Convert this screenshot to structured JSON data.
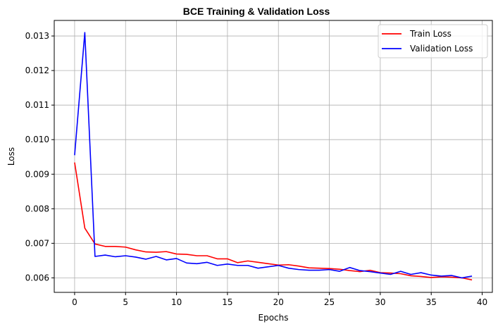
{
  "chart_data": {
    "type": "line",
    "title": "BCE Training & Validation Loss",
    "xlabel": "Epochs",
    "ylabel": "Loss",
    "xlim": [
      -2,
      41
    ],
    "ylim": [
      0.00558,
      0.01345
    ],
    "xticks": [
      0,
      5,
      10,
      15,
      20,
      25,
      30,
      35,
      40
    ],
    "xtick_labels": [
      "0",
      "5",
      "10",
      "15",
      "20",
      "25",
      "30",
      "35",
      "40"
    ],
    "yticks": [
      0.006,
      0.007,
      0.008,
      0.009,
      0.01,
      0.011,
      0.012,
      0.013
    ],
    "ytick_labels": [
      "0.006",
      "0.007",
      "0.008",
      "0.009",
      "0.010",
      "0.011",
      "0.012",
      "0.013"
    ],
    "grid": true,
    "legend_position": "top-right",
    "x": [
      0,
      1,
      2,
      3,
      4,
      5,
      6,
      7,
      8,
      9,
      10,
      11,
      12,
      13,
      14,
      15,
      16,
      17,
      18,
      19,
      20,
      21,
      22,
      23,
      24,
      25,
      26,
      27,
      28,
      29,
      30,
      31,
      32,
      33,
      34,
      35,
      36,
      37,
      38,
      39
    ],
    "series": [
      {
        "name": "Train Loss",
        "color": "#ff0000",
        "values": [
          0.00934,
          0.00744,
          0.00698,
          0.00691,
          0.00691,
          0.00689,
          0.00681,
          0.00675,
          0.00674,
          0.00676,
          0.00669,
          0.00668,
          0.00664,
          0.00664,
          0.00655,
          0.00655,
          0.00644,
          0.00649,
          0.00645,
          0.00641,
          0.00637,
          0.00638,
          0.00634,
          0.00629,
          0.00628,
          0.00627,
          0.00625,
          0.00621,
          0.00618,
          0.00622,
          0.00615,
          0.00614,
          0.00612,
          0.00606,
          0.00604,
          0.00601,
          0.00603,
          0.00602,
          0.006,
          0.00594
        ]
      },
      {
        "name": "Validation Loss",
        "color": "#0000ff",
        "values": [
          0.00955,
          0.0131,
          0.00662,
          0.00666,
          0.00661,
          0.00664,
          0.0066,
          0.00654,
          0.00662,
          0.00652,
          0.00656,
          0.00643,
          0.00641,
          0.00645,
          0.00636,
          0.0064,
          0.00636,
          0.00636,
          0.00628,
          0.00632,
          0.00636,
          0.00628,
          0.00624,
          0.00622,
          0.00622,
          0.00624,
          0.00619,
          0.0063,
          0.00621,
          0.00618,
          0.00614,
          0.0061,
          0.00619,
          0.0061,
          0.00615,
          0.00608,
          0.00605,
          0.00607,
          0.006,
          0.00605
        ]
      }
    ]
  }
}
